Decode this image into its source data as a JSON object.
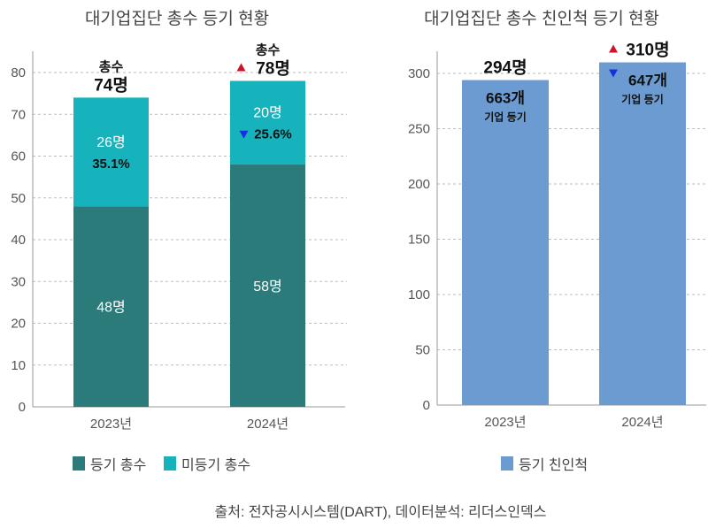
{
  "chart_data": [
    {
      "type": "bar",
      "stacked": true,
      "title": "대기업집단 총수 등기 현황",
      "categories": [
        "2023년",
        "2024년"
      ],
      "ylim": [
        0,
        85
      ],
      "yticks": [
        0,
        10,
        20,
        30,
        40,
        50,
        60,
        70,
        80
      ],
      "grid": true,
      "legend_position": "bottom",
      "series": [
        {
          "name": "등기 총수",
          "color": "#2a7b7a",
          "values": [
            48,
            58
          ],
          "labels": [
            "48명",
            "58명"
          ]
        },
        {
          "name": "미등기 총수",
          "color": "#17b3bc",
          "values": [
            26,
            20
          ],
          "labels": [
            "26명",
            "20명"
          ],
          "pct_labels": [
            "35.1%",
            "25.6%"
          ],
          "pct_markers": [
            "",
            "down"
          ]
        }
      ],
      "total_heading": "총수",
      "totals": [
        "74명",
        "78명"
      ],
      "total_markers": [
        "",
        "up"
      ]
    },
    {
      "type": "bar",
      "title": "대기업집단 총수 친인척 등기 현황",
      "categories": [
        "2023년",
        "2024년"
      ],
      "ylim": [
        0,
        320
      ],
      "yticks": [
        0,
        50,
        100,
        150,
        200,
        250,
        300
      ],
      "grid": true,
      "legend_position": "bottom",
      "series": [
        {
          "name": "등기 친인척",
          "color": "#6b9bd1",
          "values": [
            294,
            310
          ],
          "labels": [
            "294명",
            "310명"
          ]
        }
      ],
      "value_markers": [
        "",
        "up"
      ],
      "inner_labels": [
        "663개",
        "647개"
      ],
      "inner_markers": [
        "",
        "down"
      ],
      "inner_sublabel": "기업 등기"
    }
  ],
  "marker_colors": {
    "up": "#d0112b",
    "down": "#1a2fe0"
  },
  "source": "출처: 전자공시시스템(DART), 데이터분석: 리더스인덱스"
}
